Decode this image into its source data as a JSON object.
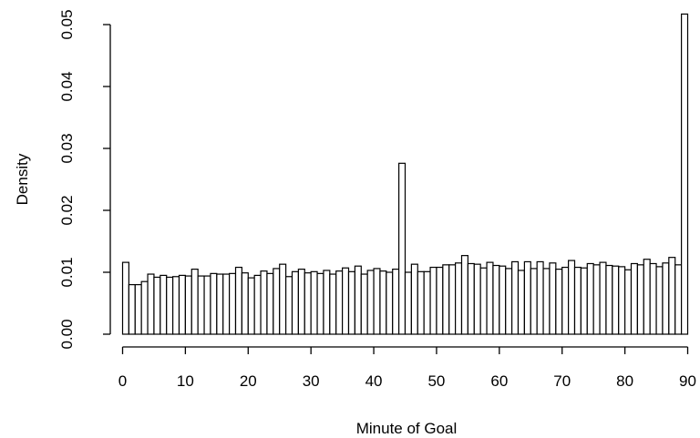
{
  "chart_data": {
    "type": "bar",
    "title": "",
    "xlabel": "Minute of Goal",
    "ylabel": "Density",
    "xlim": [
      0,
      90
    ],
    "ylim": [
      0,
      0.05
    ],
    "x_ticks": [
      "0",
      "10",
      "20",
      "30",
      "40",
      "50",
      "60",
      "70",
      "80",
      "90"
    ],
    "y_ticks": [
      "0.00",
      "0.01",
      "0.02",
      "0.03",
      "0.04",
      "0.05"
    ],
    "bin_width": 1,
    "bins_start": 0,
    "values": [
      0.0116,
      0.008,
      0.008,
      0.0085,
      0.0097,
      0.0092,
      0.0095,
      0.0092,
      0.0093,
      0.0095,
      0.0094,
      0.0105,
      0.0094,
      0.0094,
      0.0098,
      0.0097,
      0.0097,
      0.0098,
      0.0108,
      0.0099,
      0.0091,
      0.0095,
      0.0102,
      0.0098,
      0.0106,
      0.0113,
      0.0093,
      0.0101,
      0.0105,
      0.0099,
      0.0101,
      0.0098,
      0.0103,
      0.0097,
      0.0102,
      0.0107,
      0.0101,
      0.011,
      0.0097,
      0.0103,
      0.0106,
      0.0102,
      0.01,
      0.0105,
      0.0276,
      0.01,
      0.0113,
      0.0101,
      0.0101,
      0.0108,
      0.0108,
      0.0112,
      0.0112,
      0.0115,
      0.0127,
      0.0114,
      0.0113,
      0.0107,
      0.0116,
      0.0111,
      0.011,
      0.0106,
      0.0117,
      0.0103,
      0.0117,
      0.0106,
      0.0117,
      0.0106,
      0.0115,
      0.0105,
      0.0108,
      0.0119,
      0.0108,
      0.0107,
      0.0114,
      0.0112,
      0.0116,
      0.0111,
      0.011,
      0.0109,
      0.0104,
      0.0114,
      0.0112,
      0.0121,
      0.0114,
      0.0109,
      0.0115,
      0.0124,
      0.0112,
      0.0517
    ],
    "grid": false,
    "legend": "none"
  }
}
